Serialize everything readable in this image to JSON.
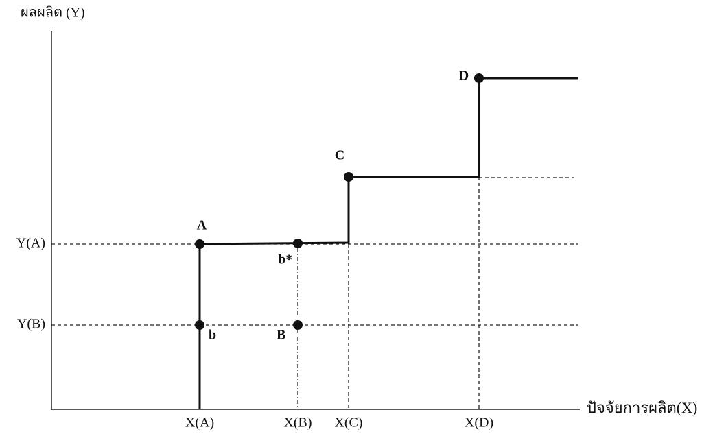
{
  "axes": {
    "y_label": "ผลผลิต (Y)",
    "x_label": "ปัจจัยการผลิต(X)"
  },
  "ticks": {
    "y": [
      "Y(A)",
      "Y(B)"
    ],
    "x": [
      "X(A)",
      "X(B)",
      "X(C)",
      "X(D)"
    ]
  },
  "points": [
    {
      "label": "A"
    },
    {
      "label": "b"
    },
    {
      "label": "b*"
    },
    {
      "label": "B"
    },
    {
      "label": "C"
    },
    {
      "label": "D"
    }
  ]
}
